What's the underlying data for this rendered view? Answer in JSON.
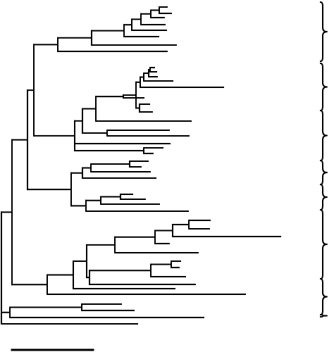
{
  "figure": {
    "type": "phylogenetic-tree",
    "line_color": "#000000",
    "background_color": "#ffffff",
    "visible_text": [],
    "leaf_count": 50,
    "clade_brackets": 7,
    "has_scale_bar": true
  }
}
